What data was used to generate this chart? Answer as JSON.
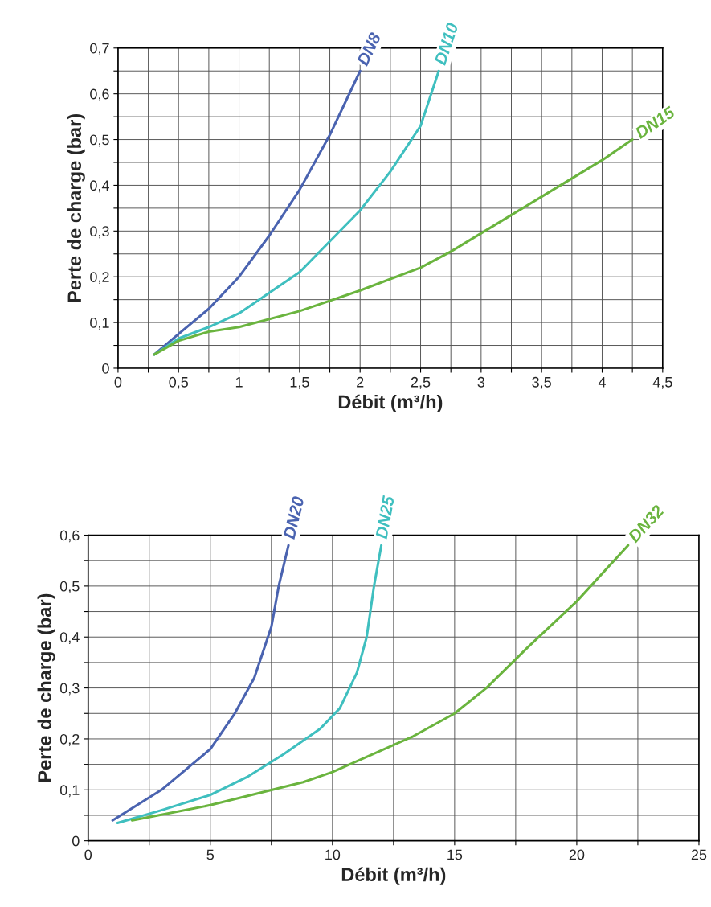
{
  "chart_data": [
    {
      "type": "line",
      "xlabel": "Débit (m³/h)",
      "ylabel": "Perte de charge (bar)",
      "grid": true,
      "legend": false,
      "marker": "none",
      "line_style": "solid",
      "xlim": [
        0,
        4.5
      ],
      "ylim": [
        0,
        0.7
      ],
      "xticks": [
        0,
        {
          "value": 0.25,
          "label": null
        },
        {
          "value": 0.5,
          "label": "0,5"
        },
        {
          "value": 0.75,
          "label": null
        },
        1,
        {
          "value": 1.25,
          "label": null
        },
        {
          "value": 1.5,
          "label": "1,5"
        },
        {
          "value": 1.75,
          "label": null
        },
        2,
        {
          "value": 2.25,
          "label": null
        },
        {
          "value": 2.5,
          "label": "2,5"
        },
        {
          "value": 2.75,
          "label": null
        },
        3,
        {
          "value": 3.25,
          "label": null
        },
        {
          "value": 3.5,
          "label": "3,5"
        },
        {
          "value": 3.75,
          "label": null
        },
        4,
        {
          "value": 4.25,
          "label": null
        },
        {
          "value": 4.5,
          "label": "4,5"
        }
      ],
      "yticks": [
        0,
        {
          "value": 0.05,
          "label": null
        },
        {
          "value": 0.1,
          "label": "0,1"
        },
        {
          "value": 0.15,
          "label": null
        },
        {
          "value": 0.2,
          "label": "0,2"
        },
        {
          "value": 0.25,
          "label": null
        },
        {
          "value": 0.3,
          "label": "0,3"
        },
        {
          "value": 0.35,
          "label": null
        },
        {
          "value": 0.4,
          "label": "0,4"
        },
        {
          "value": 0.45,
          "label": null
        },
        {
          "value": 0.5,
          "label": "0,5"
        },
        {
          "value": 0.55,
          "label": null
        },
        {
          "value": 0.6,
          "label": "0,6"
        },
        {
          "value": 0.65,
          "label": null
        },
        {
          "value": 0.7,
          "label": "0,7"
        }
      ],
      "series": [
        {
          "name": "DN8",
          "color": "#4a63b0",
          "x": [
            0.3,
            0.5,
            0.75,
            1,
            1.25,
            1.5,
            1.75,
            2
          ],
          "values": [
            0.03,
            0.075,
            0.13,
            0.2,
            0.29,
            0.39,
            0.51,
            0.65
          ]
        },
        {
          "name": "DN10",
          "color": "#3fbfbf",
          "x": [
            0.3,
            0.5,
            0.75,
            1,
            1.5,
            2,
            2.25,
            2.5,
            2.65
          ],
          "values": [
            0.03,
            0.065,
            0.09,
            0.12,
            0.21,
            0.345,
            0.43,
            0.53,
            0.65
          ]
        },
        {
          "name": "DN15",
          "color": "#6ab43e",
          "x": [
            0.3,
            0.5,
            0.75,
            1,
            1.5,
            2,
            2.5,
            2.75,
            3,
            3.5,
            4,
            4.25
          ],
          "values": [
            0.03,
            0.06,
            0.08,
            0.09,
            0.125,
            0.17,
            0.22,
            0.255,
            0.295,
            0.375,
            0.455,
            0.5
          ]
        }
      ]
    },
    {
      "type": "line",
      "xlabel": "Débit (m³/h)",
      "ylabel": "Perte de charge (bar)",
      "grid": true,
      "legend": false,
      "marker": "none",
      "line_style": "solid",
      "xlim": [
        0,
        25
      ],
      "ylim": [
        0,
        0.6
      ],
      "xticks": [
        0,
        {
          "value": 2.5,
          "label": null
        },
        5,
        {
          "value": 7.5,
          "label": null
        },
        10,
        {
          "value": 12.5,
          "label": null
        },
        15,
        {
          "value": 17.5,
          "label": null
        },
        20,
        {
          "value": 22.5,
          "label": null
        },
        25
      ],
      "yticks": [
        0,
        {
          "value": 0.05,
          "label": null
        },
        {
          "value": 0.1,
          "label": "0,1"
        },
        {
          "value": 0.15,
          "label": null
        },
        {
          "value": 0.2,
          "label": "0,2"
        },
        {
          "value": 0.25,
          "label": null
        },
        {
          "value": 0.3,
          "label": "0,3"
        },
        {
          "value": 0.35,
          "label": null
        },
        {
          "value": 0.4,
          "label": "0,4"
        },
        {
          "value": 0.45,
          "label": null
        },
        {
          "value": 0.5,
          "label": "0,5"
        },
        {
          "value": 0.55,
          "label": null
        },
        {
          "value": 0.6,
          "label": "0,6"
        }
      ],
      "series": [
        {
          "name": "DN20",
          "color": "#4a63b0",
          "x": [
            1,
            3,
            5,
            6,
            6.8,
            7.5,
            7.8,
            8.2
          ],
          "values": [
            0.04,
            0.1,
            0.18,
            0.25,
            0.32,
            0.42,
            0.5,
            0.58
          ]
        },
        {
          "name": "DN25",
          "color": "#3fbfbf",
          "x": [
            1.2,
            3,
            5,
            6.5,
            8,
            9.5,
            10.3,
            11,
            11.4,
            11.7,
            12
          ],
          "values": [
            0.035,
            0.06,
            0.09,
            0.125,
            0.17,
            0.22,
            0.26,
            0.33,
            0.4,
            0.5,
            0.58
          ]
        },
        {
          "name": "DN32",
          "color": "#6ab43e",
          "x": [
            1.8,
            5,
            8.8,
            10,
            13.3,
            15,
            16.3,
            18,
            20,
            22.1
          ],
          "values": [
            0.04,
            0.07,
            0.115,
            0.135,
            0.205,
            0.25,
            0.3,
            0.38,
            0.47,
            0.58
          ]
        }
      ]
    }
  ]
}
